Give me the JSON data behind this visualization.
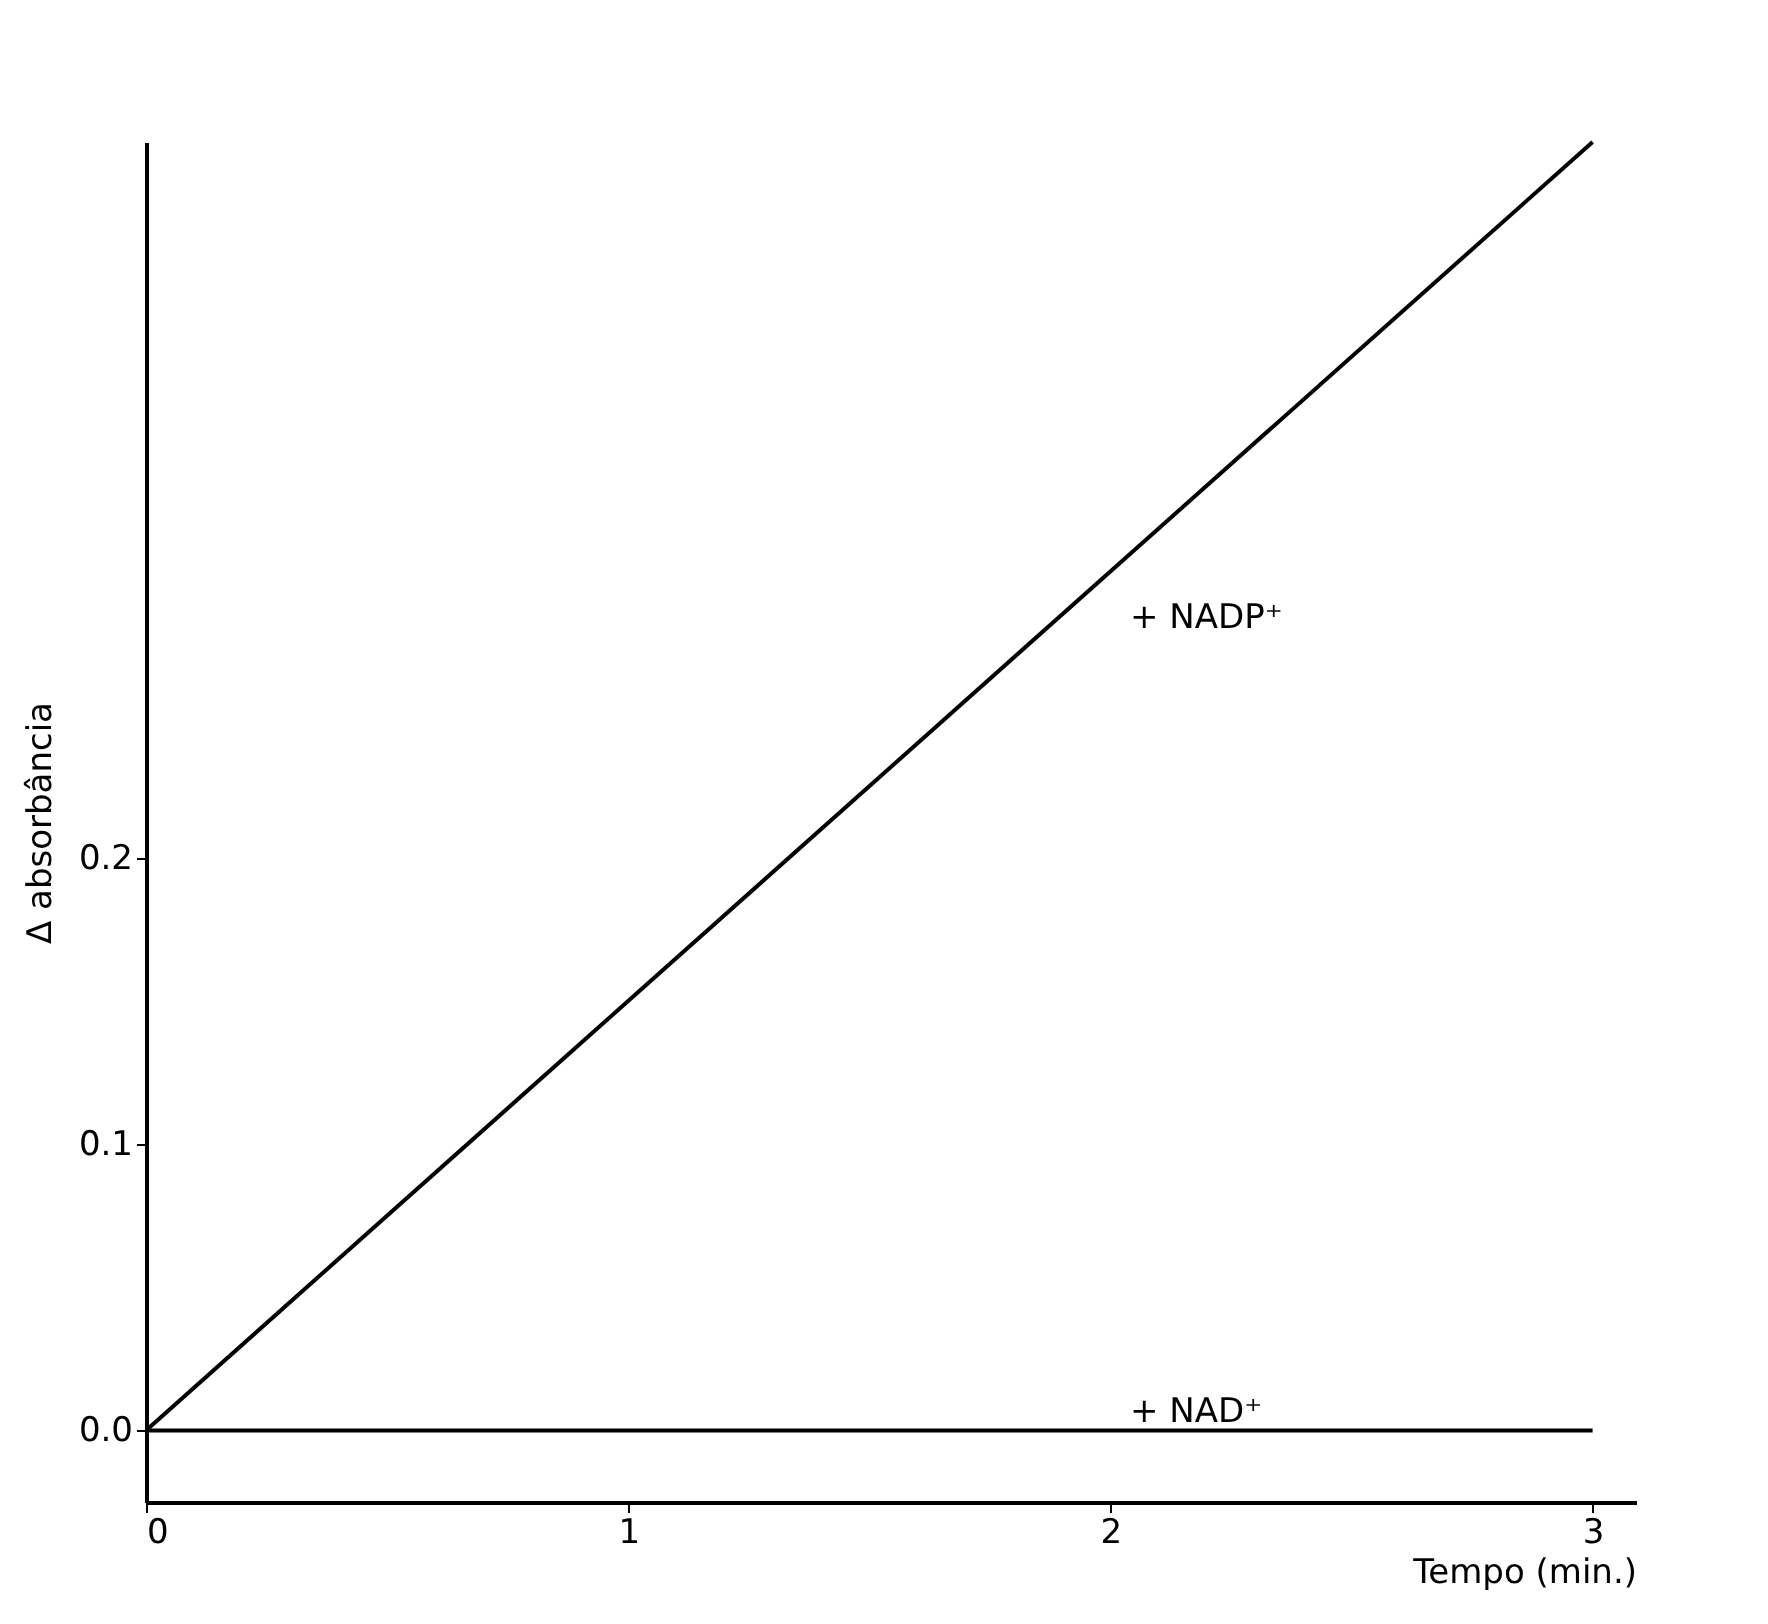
{
  "chart_data": {
    "type": "line",
    "xlabel": "Tempo (min.)",
    "ylabel": "Δ absorbância",
    "x": [
      0,
      3
    ],
    "series": [
      {
        "color": "#000000",
        "values": [
          0,
          0.45
        ]
      },
      {
        "color": "#000000",
        "values": [
          0,
          0
        ]
      }
    ],
    "xlim": [
      0,
      3.09
    ],
    "ylim": [
      -0.025,
      0.45
    ],
    "xticks": [
      0,
      1,
      2,
      3
    ],
    "yticks": [
      {
        "value": 0,
        "label": "0.0"
      },
      {
        "value": 0.1,
        "label": "0.1"
      },
      {
        "value": 0.2,
        "label": "0.2"
      }
    ],
    "annotations": [
      "+ NADP⁺",
      "+ NAD⁺"
    ],
    "grid": false,
    "marker": "none",
    "line_style": "solid"
  }
}
